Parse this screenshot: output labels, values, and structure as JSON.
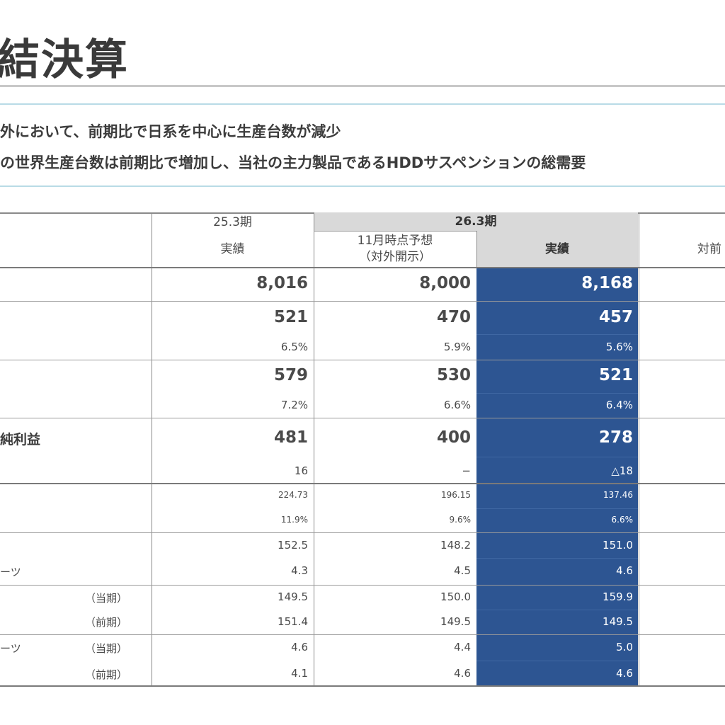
{
  "title": "結決算",
  "bullets": [
    "外において、前期比で日系を中心に生産台数が減少",
    "の世界生産台数は前期比で増加し、当社の主力製品であるHDDサスペンションの総需要"
  ],
  "table": {
    "header": {
      "col1_period": "25.3期",
      "col1_sub": "実績",
      "group_period": "26.3期",
      "col2_line1": "11月時点予想",
      "col2_line2": "（対外開示）",
      "col3": "実績",
      "col4": "対前"
    },
    "row_labels": {
      "profit_label": "純利益",
      "parts1": "ーツ",
      "parts2": "ーツ",
      "current1": "（当期）",
      "prior1": "（前期）",
      "current2": "（当期）",
      "prior2": "（前期）"
    },
    "rows": [
      {
        "key": "sales",
        "v": [
          "8,016",
          "8,000",
          "8,168"
        ]
      },
      {
        "key": "op_income",
        "v": [
          "521",
          "470",
          "457"
        ]
      },
      {
        "key": "op_margin",
        "v": [
          "6.5%",
          "5.9%",
          "5.6%"
        ]
      },
      {
        "key": "ord_income",
        "v": [
          "579",
          "530",
          "521"
        ]
      },
      {
        "key": "ord_margin",
        "v": [
          "7.2%",
          "6.6%",
          "6.4%"
        ]
      },
      {
        "key": "net_income",
        "v": [
          "481",
          "400",
          "278"
        ]
      },
      {
        "key": "net_sub",
        "v": [
          "16",
          "−",
          "△18"
        ]
      },
      {
        "key": "eps",
        "v": [
          "224.73",
          "196.15",
          "137.46"
        ]
      },
      {
        "key": "roe",
        "v": [
          "11.9%",
          "9.6%",
          "6.6%"
        ]
      },
      {
        "key": "fx1",
        "v": [
          "152.5",
          "148.2",
          "151.0"
        ]
      },
      {
        "key": "fx2",
        "v": [
          "4.3",
          "4.5",
          "4.6"
        ]
      },
      {
        "key": "fx3",
        "v": [
          "149.5",
          "150.0",
          "159.9"
        ]
      },
      {
        "key": "fx4",
        "v": [
          "151.4",
          "149.5",
          "149.5"
        ]
      },
      {
        "key": "fx5",
        "v": [
          "4.6",
          "4.4",
          "5.0"
        ]
      },
      {
        "key": "fx6",
        "v": [
          "4.1",
          "4.6",
          "4.6"
        ]
      }
    ]
  }
}
